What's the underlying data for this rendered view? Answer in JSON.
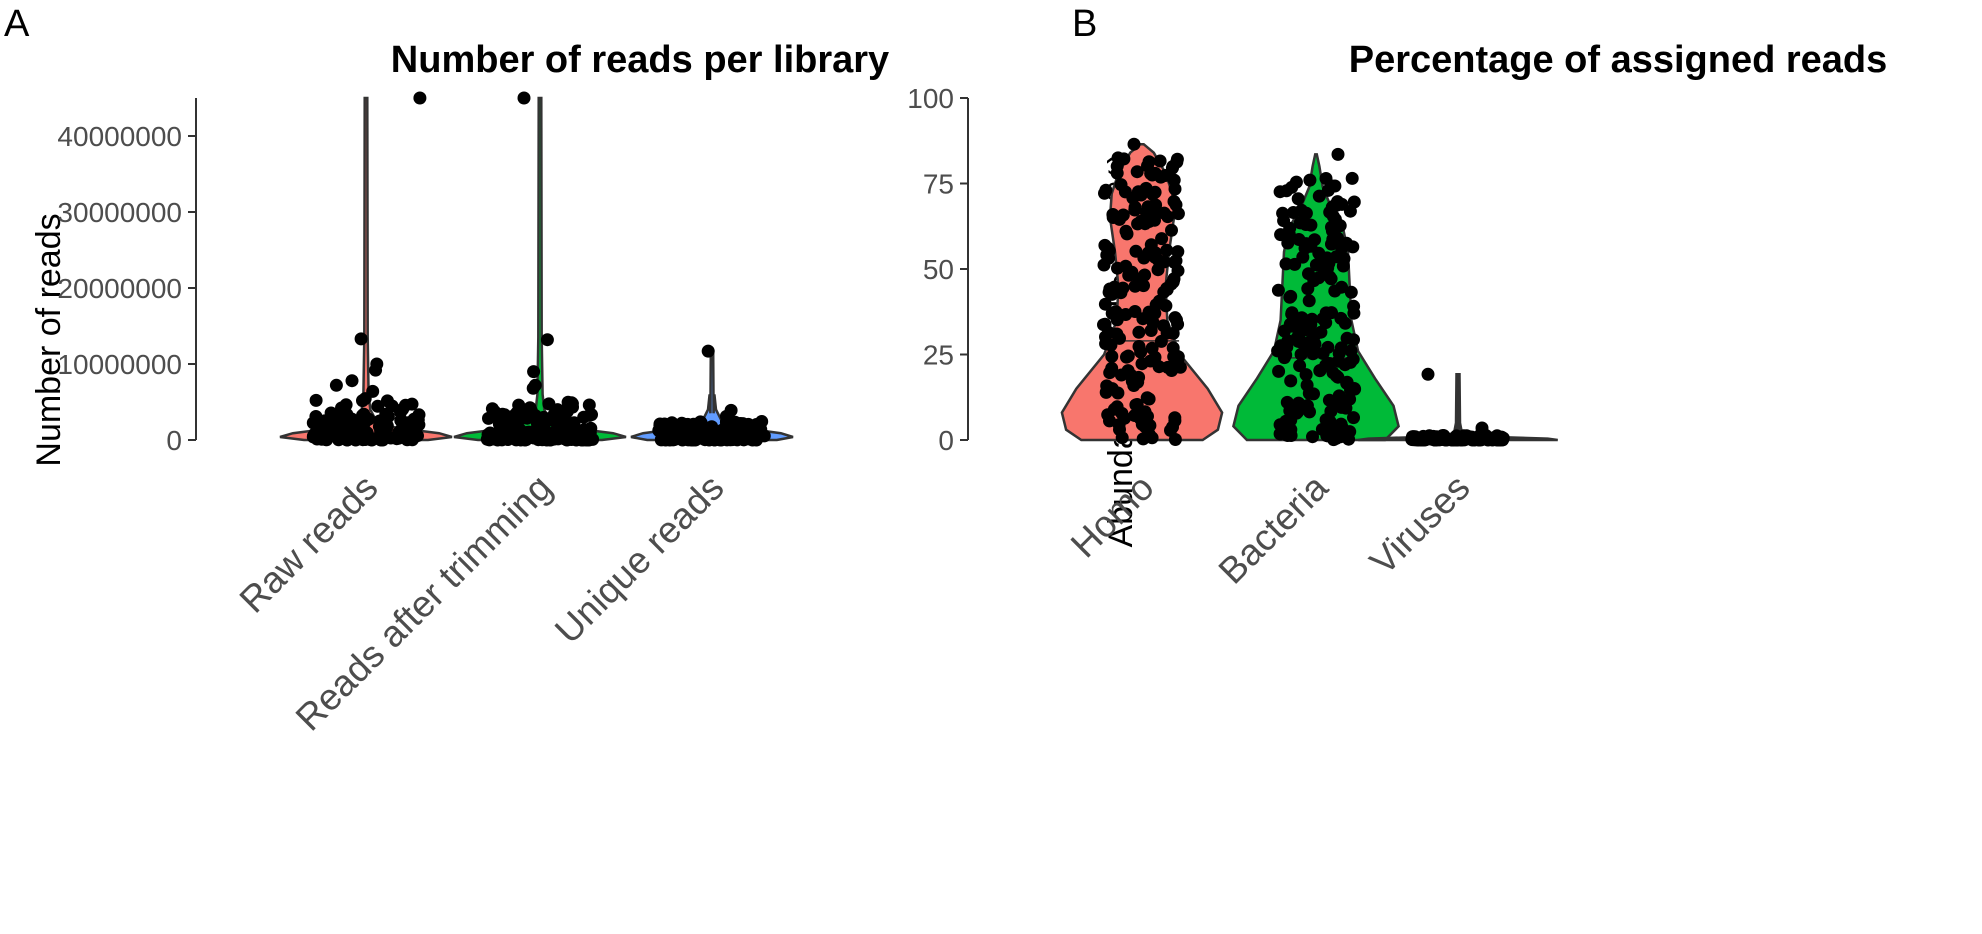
{
  "colors": {
    "raw": "#F8766D",
    "trimmed": "#00BA38",
    "unique": "#619CFF",
    "points": "#000000",
    "axis": "#333333",
    "violin_stroke": "#333333"
  },
  "chart_data": [
    {
      "panel_label": "A",
      "type": "violin",
      "title": "Number of reads per library",
      "xlabel": "",
      "ylabel": "Number of reads",
      "ylim": [
        0,
        45000000
      ],
      "yticks": [
        0,
        10000000,
        20000000,
        30000000,
        40000000
      ],
      "ytick_labels": [
        "0",
        "10000000",
        "20000000",
        "30000000",
        "40000000"
      ],
      "categories": [
        "Raw reads",
        "Reads after trimming",
        "Unique reads"
      ],
      "series": [
        {
          "category": "Raw reads",
          "max": 45000000,
          "median": 4500000,
          "outliers": [
            45000000,
            13300000,
            10000000,
            9200000,
            7800000,
            7200000,
            6400000
          ],
          "bulk_range": [
            0,
            5500000
          ]
        },
        {
          "category": "Reads after trimming",
          "max": 45000000,
          "median": 5200000,
          "outliers": [
            45000000,
            13200000,
            9000000,
            7200000,
            6800000
          ],
          "bulk_range": [
            0,
            5000000
          ]
        },
        {
          "category": "Unique reads",
          "max": 11700000,
          "median": 300000,
          "outliers": [
            11700000,
            3900000,
            3100000
          ],
          "bulk_range": [
            0,
            2500000
          ]
        }
      ]
    },
    {
      "panel_label": "B",
      "type": "violin",
      "title": "Percentage of assigned reads",
      "xlabel": "",
      "ylabel": "Abundance per library (%)",
      "ylim": [
        0,
        100
      ],
      "yticks": [
        0,
        25,
        50,
        75,
        100
      ],
      "ytick_labels": [
        "0",
        "25",
        "50",
        "75",
        "100"
      ],
      "categories": [
        "Homo",
        "Bacteria",
        "Viruses"
      ],
      "series": [
        {
          "category": "Homo",
          "max": 86.5,
          "median": 29,
          "bulk_range": [
            0,
            86.5
          ]
        },
        {
          "category": "Bacteria",
          "max": 83.5,
          "median": 24,
          "bulk_range": [
            0,
            83.5
          ]
        },
        {
          "category": "Viruses",
          "max": 19.2,
          "median": 0.1,
          "outliers": [
            19.2,
            3.5
          ],
          "bulk_range": [
            0,
            1.5
          ]
        }
      ]
    }
  ]
}
